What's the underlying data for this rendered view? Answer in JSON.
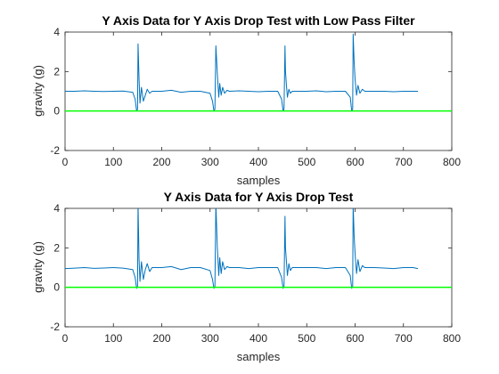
{
  "figure": {
    "background": "#ffffff",
    "axes_color": "#262626",
    "signal_color": "#0072BD",
    "baseline_color": "#00FF00"
  },
  "chart_data": [
    {
      "type": "line",
      "title": "Y Axis Data for Y Axis Drop Test with Low Pass Filter",
      "xlabel": "samples",
      "ylabel": "gravity (g)",
      "xlim": [
        0,
        800
      ],
      "ylim": [
        -2,
        4
      ],
      "xticks": [
        0,
        100,
        200,
        300,
        400,
        500,
        600,
        700,
        800
      ],
      "yticks": [
        -2,
        0,
        2,
        4
      ],
      "grid": false,
      "series": [
        {
          "x": [
            0,
            20,
            40,
            60,
            80,
            100,
            120,
            140,
            145,
            148,
            150,
            151,
            153,
            155,
            158,
            162,
            166,
            170,
            175,
            180,
            200,
            220,
            240,
            260,
            280,
            300,
            305,
            308,
            310,
            312,
            315,
            316,
            318,
            320,
            323,
            326,
            330,
            335,
            340,
            360,
            380,
            400,
            420,
            440,
            448,
            451,
            453,
            455,
            456,
            458,
            460,
            463,
            466,
            470,
            480,
            500,
            520,
            540,
            560,
            580,
            590,
            593,
            595,
            596,
            598,
            600,
            603,
            606,
            610,
            615,
            620,
            640,
            660,
            680,
            700,
            720,
            730
          ],
          "y": [
            1.0,
            1.0,
            1.02,
            1.0,
            0.99,
            1.0,
            1.01,
            0.95,
            0.6,
            0.0,
            0.1,
            3.4,
            1.7,
            0.4,
            1.2,
            0.5,
            0.8,
            1.1,
            0.9,
            1.0,
            1.0,
            1.05,
            0.95,
            1.0,
            1.0,
            0.9,
            0.5,
            0.0,
            0.1,
            3.3,
            1.9,
            1.5,
            0.7,
            1.4,
            0.8,
            1.2,
            0.9,
            1.05,
            1.0,
            1.02,
            1.0,
            0.98,
            1.0,
            1.0,
            0.6,
            0.0,
            0.1,
            3.3,
            2.0,
            1.3,
            0.7,
            1.1,
            0.9,
            1.0,
            1.0,
            1.0,
            1.02,
            0.98,
            1.0,
            1.0,
            0.7,
            0.0,
            0.1,
            3.9,
            2.5,
            1.6,
            0.8,
            1.3,
            0.9,
            1.1,
            1.0,
            1.0,
            1.0,
            0.98,
            1.0,
            1.0,
            1.0
          ]
        },
        {
          "x": [
            0,
            800
          ],
          "y": [
            0,
            0
          ]
        }
      ]
    },
    {
      "type": "line",
      "title": "Y Axis Data for Y Axis Drop Test",
      "xlabel": "samples",
      "ylabel": "gravity (g)",
      "xlim": [
        0,
        800
      ],
      "ylim": [
        -2,
        4
      ],
      "xticks": [
        0,
        100,
        200,
        300,
        400,
        500,
        600,
        700,
        800
      ],
      "yticks": [
        -2,
        0,
        2,
        4
      ],
      "grid": false,
      "series": [
        {
          "x": [
            0,
            20,
            40,
            60,
            80,
            100,
            120,
            140,
            145,
            148,
            150,
            151,
            153,
            155,
            158,
            162,
            166,
            170,
            175,
            180,
            200,
            220,
            240,
            260,
            280,
            300,
            305,
            308,
            310,
            312,
            315,
            316,
            318,
            320,
            323,
            326,
            330,
            335,
            340,
            360,
            380,
            400,
            420,
            440,
            448,
            451,
            453,
            455,
            456,
            458,
            460,
            463,
            466,
            470,
            480,
            500,
            520,
            540,
            560,
            580,
            590,
            593,
            595,
            596,
            598,
            600,
            603,
            606,
            610,
            615,
            620,
            640,
            660,
            680,
            700,
            720,
            730
          ],
          "y": [
            0.95,
            0.97,
            1.0,
            0.96,
            0.98,
            1.0,
            0.97,
            0.9,
            0.5,
            -0.05,
            0.05,
            4.2,
            1.5,
            0.3,
            1.3,
            0.4,
            0.9,
            1.2,
            0.8,
            1.0,
            1.0,
            1.05,
            0.9,
            1.0,
            1.0,
            0.85,
            0.4,
            -0.05,
            0.05,
            4.2,
            2.0,
            1.6,
            0.6,
            1.5,
            0.7,
            1.3,
            0.9,
            1.05,
            1.0,
            1.0,
            0.95,
            1.0,
            1.0,
            1.0,
            0.5,
            -0.05,
            0.05,
            3.6,
            2.0,
            1.3,
            0.6,
            1.2,
            0.85,
            1.0,
            1.0,
            1.0,
            1.0,
            0.95,
            1.0,
            1.0,
            0.6,
            -0.05,
            0.05,
            4.2,
            2.6,
            1.7,
            0.7,
            1.4,
            0.8,
            1.1,
            1.0,
            1.0,
            0.98,
            0.95,
            1.0,
            1.0,
            0.95
          ]
        },
        {
          "x": [
            0,
            800
          ],
          "y": [
            0,
            0
          ]
        }
      ]
    }
  ]
}
